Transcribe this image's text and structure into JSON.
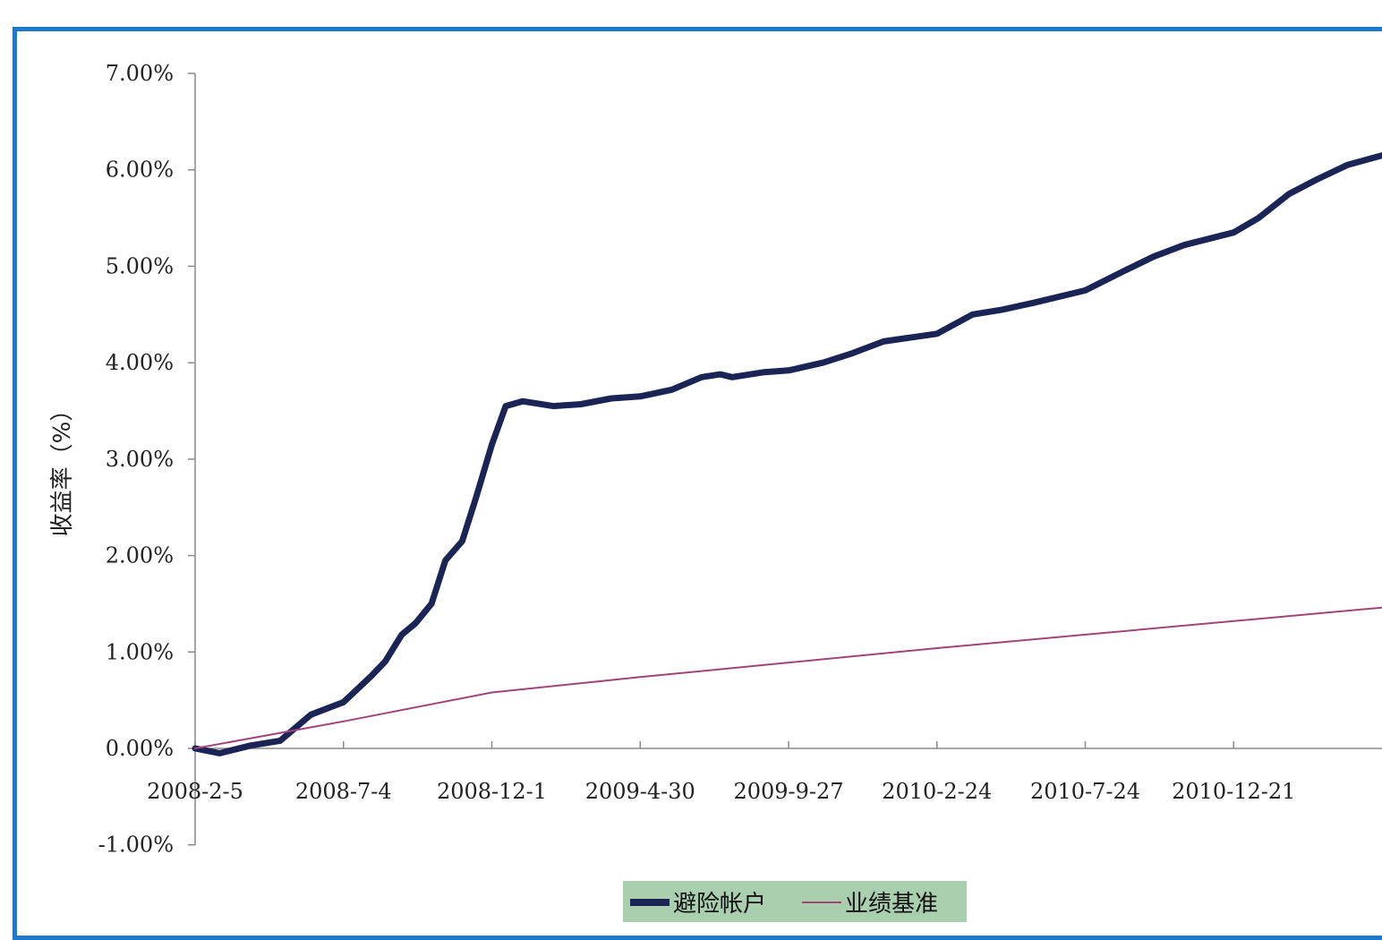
{
  "chart_data": {
    "type": "line",
    "title": "",
    "xlabel": "",
    "ylabel": "收益率（%）",
    "y_ticks": [
      "-1.00%",
      "0.00%",
      "1.00%",
      "2.00%",
      "3.00%",
      "4.00%",
      "5.00%",
      "6.00%",
      "7.00%"
    ],
    "x_ticks": [
      "2008-2-5",
      "2008-7-4",
      "2008-12-1",
      "2009-4-30",
      "2009-9-27",
      "2010-2-24",
      "2010-7-24",
      "2010-12-21"
    ],
    "ylim": [
      -1.0,
      7.0
    ],
    "xlim": [
      "2008-2-5",
      "2011-5-20"
    ],
    "legend": {
      "position": "bottom"
    },
    "grid": false,
    "series": [
      {
        "name": "避险帐户",
        "color": "#1a2455",
        "x": [
          "2008-2-5",
          "2008-3-1",
          "2008-4-1",
          "2008-5-1",
          "2008-6-1",
          "2008-7-4",
          "2008-8-1",
          "2008-8-15",
          "2008-9-1",
          "2008-9-15",
          "2008-10-1",
          "2008-10-15",
          "2008-11-1",
          "2008-11-15",
          "2008-12-1",
          "2008-12-15",
          "2009-1-1",
          "2009-2-1",
          "2009-3-1",
          "2009-4-1",
          "2009-4-30",
          "2009-6-1",
          "2009-7-1",
          "2009-7-20",
          "2009-8-1",
          "2009-9-1",
          "2009-9-27",
          "2009-11-1",
          "2009-12-1",
          "2010-1-1",
          "2010-2-24",
          "2010-4-1",
          "2010-5-1",
          "2010-6-1",
          "2010-7-24",
          "2010-9-1",
          "2010-10-1",
          "2010-11-1",
          "2010-12-21",
          "2011-1-15",
          "2011-2-15",
          "2011-3-15",
          "2011-4-15",
          "2011-5-20"
        ],
        "y": [
          0.0,
          -0.05,
          0.03,
          0.08,
          0.35,
          0.48,
          0.75,
          0.9,
          1.18,
          1.3,
          1.5,
          1.95,
          2.15,
          2.6,
          3.15,
          3.55,
          3.6,
          3.55,
          3.57,
          3.63,
          3.65,
          3.72,
          3.85,
          3.88,
          3.85,
          3.9,
          3.92,
          4.0,
          4.1,
          4.22,
          4.3,
          4.5,
          4.55,
          4.62,
          4.75,
          4.95,
          5.1,
          5.22,
          5.35,
          5.5,
          5.75,
          5.9,
          6.05,
          6.15
        ]
      },
      {
        "name": "业绩基准",
        "color": "#a0457a",
        "x": [
          "2008-2-5",
          "2008-7-4",
          "2008-12-1",
          "2009-4-30",
          "2009-9-27",
          "2010-2-24",
          "2010-7-24",
          "2010-12-21",
          "2011-5-20"
        ],
        "y": [
          0.0,
          0.28,
          0.58,
          0.74,
          0.89,
          1.04,
          1.18,
          1.32,
          1.46
        ]
      }
    ]
  }
}
